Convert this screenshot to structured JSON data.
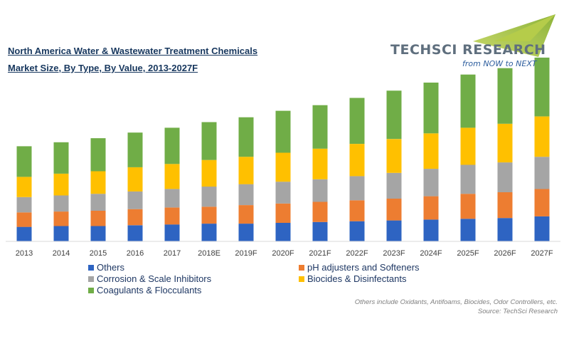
{
  "title_lines": [
    "North America Water & Wastewater Treatment Chemicals",
    "Market Size, By Type, By Value, 2013-2027F"
  ],
  "logo": {
    "text": "TECHSCI RESEARCH",
    "tagline": "from NOW to NEXT"
  },
  "notes": {
    "line1": "Others include Oxidants, Antifoams, Biocides, Odor Controllers, etc.",
    "line2": "Source: TechSci Research"
  },
  "chart_data": {
    "type": "bar",
    "stacked": true,
    "categories": [
      "2013",
      "2014",
      "2015",
      "2016",
      "2017",
      "2018E",
      "2019F",
      "2020F",
      "2021F",
      "2022F",
      "2023F",
      "2024F",
      "2025F",
      "2026F",
      "2027F"
    ],
    "ylim": [
      0,
      220
    ],
    "grid": false,
    "legend_position": "bottom",
    "series": [
      {
        "name": "Others",
        "color": "#2e64c2",
        "values": [
          18,
          19,
          19,
          20,
          21,
          22,
          22,
          23,
          24,
          25,
          26,
          27,
          28,
          29,
          31
        ]
      },
      {
        "name": "pH adjusters and Softeners",
        "color": "#ed7d31",
        "values": [
          18,
          18,
          19,
          20,
          21,
          21,
          23,
          24,
          25,
          26,
          27,
          29,
          31,
          32,
          34
        ]
      },
      {
        "name": "Corrosion & Scale Inhibitors",
        "color": "#a5a5a5",
        "values": [
          19,
          20,
          21,
          22,
          23,
          25,
          26,
          27,
          28,
          30,
          32,
          34,
          36,
          37,
          40
        ]
      },
      {
        "name": "Biocides & Disinfectants",
        "color": "#ffc000",
        "values": [
          25,
          27,
          28,
          30,
          31,
          33,
          34,
          36,
          38,
          40,
          42,
          44,
          46,
          48,
          50
        ]
      },
      {
        "name": "Coagulants & Flocculants",
        "color": "#70ad47",
        "values": [
          38,
          39,
          41,
          43,
          45,
          47,
          49,
          52,
          54,
          57,
          60,
          63,
          66,
          69,
          73
        ]
      }
    ]
  }
}
